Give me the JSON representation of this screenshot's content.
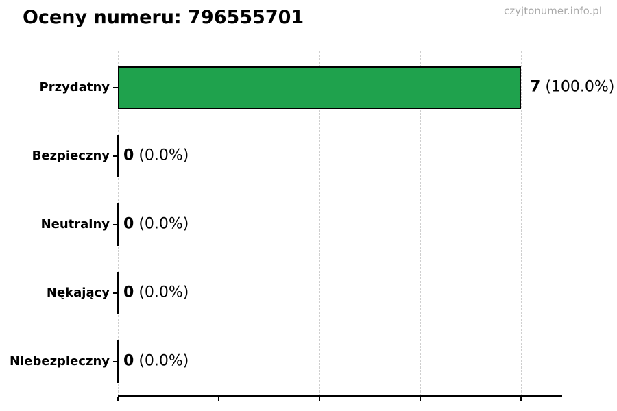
{
  "page": {
    "watermark": "czyjtonumer.info.pl"
  },
  "chart_data": {
    "type": "bar",
    "orientation": "horizontal",
    "title": "Oceny numeru: 796555701",
    "categories": [
      "Przydatny",
      "Bezpieczny",
      "Neutralny",
      "Nękający",
      "Niebezpieczny"
    ],
    "values": [
      7,
      0,
      0,
      0,
      0
    ],
    "percentages": [
      100.0,
      0.0,
      0.0,
      0.0,
      0.0
    ],
    "percent_labels": [
      "(100.0%)",
      "(0.0%)",
      "(0.0%)",
      "(0.0%)",
      "(0.0%)"
    ],
    "total_votes": 7,
    "xlim": [
      0,
      7.7
    ],
    "x_gridline_count": 5,
    "x_tick_labels": [],
    "grid": "vertical-dashed",
    "legend": "none",
    "colors": {
      "bar_fill": "#1FA24D",
      "bar_edge": "#000000",
      "grid_line": "#cfcfcf",
      "axis_line": "#000000",
      "title_text": "#000000",
      "category_text": "#000000",
      "value_text": "#000000",
      "watermark_text": "#a9a9a9",
      "background": "#ffffff"
    }
  }
}
